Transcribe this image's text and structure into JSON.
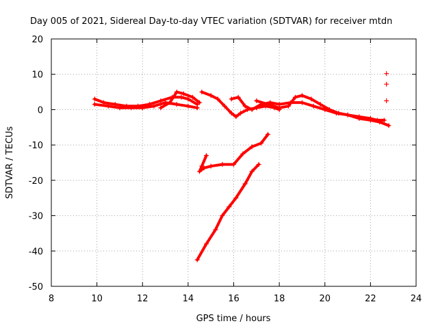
{
  "chart_data": {
    "type": "scatter",
    "title": "Day 005 of 2021, Sidereal Day-to-day VTEC variation (SDTVAR) for receiver mtdn",
    "xlabel": "GPS time / hours",
    "ylabel": "SDTVAR / TECUs",
    "xlim": [
      8,
      24
    ],
    "ylim": [
      -50,
      20
    ],
    "xticks": [
      8,
      10,
      12,
      14,
      16,
      18,
      20,
      22,
      24
    ],
    "yticks": [
      20,
      10,
      0,
      -10,
      -20,
      -30,
      -40,
      -50
    ],
    "x_tick_labels": [
      "8",
      "10",
      "12",
      "14",
      "16",
      "18",
      "20",
      "22",
      "24"
    ],
    "y_tick_labels": [
      "20",
      "10",
      "0",
      "-10",
      "-20",
      "-30",
      "-40",
      "-50"
    ],
    "grid": true,
    "marker": "+",
    "color": "#ff0000",
    "series": [
      {
        "name": "track-1",
        "x": [
          9.9,
          10.3,
          10.8,
          11.3,
          11.8,
          12.3,
          12.8,
          13.3,
          13.7,
          14.0,
          14.4
        ],
        "y": [
          3.0,
          2.0,
          1.5,
          1.0,
          1.0,
          1.5,
          2.5,
          3.5,
          3.5,
          3.0,
          1.5
        ]
      },
      {
        "name": "track-2",
        "x": [
          9.9,
          10.5,
          11.0,
          11.5,
          12.0,
          12.5,
          13.0,
          13.5,
          14.0,
          14.4
        ],
        "y": [
          1.5,
          1.0,
          0.5,
          0.5,
          0.5,
          1.0,
          2.0,
          1.5,
          1.0,
          0.5
        ]
      },
      {
        "name": "track-3",
        "x": [
          12.8,
          13.2,
          13.5,
          13.8,
          14.2,
          14.5
        ],
        "y": [
          0.5,
          2.0,
          5.0,
          4.5,
          3.5,
          2.0
        ]
      },
      {
        "name": "track-4",
        "x": [
          14.6,
          15.0,
          15.3,
          15.6,
          15.9,
          16.1,
          16.3,
          16.6,
          17.0,
          17.4,
          17.8,
          18.0
        ],
        "y": [
          5.0,
          4.0,
          3.0,
          1.0,
          -1.0,
          -2.0,
          -1.0,
          0.0,
          0.5,
          1.0,
          0.5,
          0.0
        ]
      },
      {
        "name": "track-5",
        "x": [
          15.9,
          16.2,
          16.5,
          16.8,
          17.2,
          17.6,
          18.0,
          18.5,
          19.0,
          19.5,
          20.0,
          20.5,
          21.0,
          21.5,
          22.0,
          22.3,
          22.6
        ],
        "y": [
          3.0,
          3.5,
          1.0,
          0.0,
          1.5,
          2.0,
          1.5,
          2.0,
          2.0,
          1.0,
          0.0,
          -1.0,
          -1.5,
          -2.0,
          -2.5,
          -3.0,
          -3.0
        ]
      },
      {
        "name": "track-6",
        "x": [
          17.0,
          17.5,
          18.0,
          18.4,
          18.7,
          19.0,
          19.4,
          19.8,
          20.2,
          20.6,
          21.0,
          21.5,
          22.0,
          22.4,
          22.8
        ],
        "y": [
          2.5,
          1.5,
          0.5,
          1.0,
          3.5,
          4.0,
          3.0,
          1.5,
          0.0,
          -1.0,
          -1.5,
          -2.5,
          -3.0,
          -3.5,
          -4.5
        ]
      },
      {
        "name": "track-7",
        "x": [
          14.8,
          14.6,
          14.5,
          14.7,
          15.0,
          15.5,
          16.0,
          16.4,
          16.8,
          17.2,
          17.5
        ],
        "y": [
          -13.0,
          -16.0,
          -17.5,
          -16.5,
          -16.0,
          -15.5,
          -15.5,
          -12.5,
          -10.5,
          -9.5,
          -7.0
        ]
      },
      {
        "name": "track-8",
        "x": [
          14.4,
          14.8,
          15.2,
          15.5,
          15.8,
          16.1,
          16.5,
          16.8,
          17.1
        ],
        "y": [
          -42.5,
          -38.0,
          -34.0,
          -30.0,
          -27.5,
          -25.0,
          -21.0,
          -17.5,
          -15.5
        ]
      },
      {
        "name": "isolated",
        "x": [
          22.7,
          22.7,
          22.7
        ],
        "y": [
          10.2,
          7.2,
          2.5
        ]
      }
    ]
  }
}
